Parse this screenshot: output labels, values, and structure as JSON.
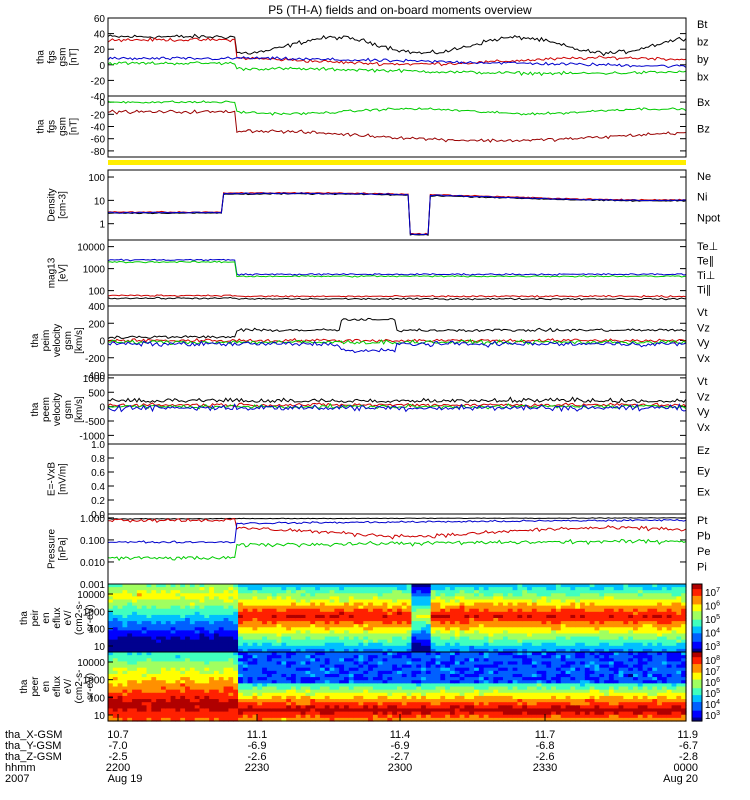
{
  "title": "P5 (TH-A) fields and on-board moments overview",
  "colors": {
    "black": "#000000",
    "red": "#cc0000",
    "green": "#00cc00",
    "blue": "#0000cc",
    "darkred": "#990000",
    "separator": "#ffee00"
  },
  "chart_data": [
    {
      "type": "line",
      "panel": "fgs-gsm",
      "ylabel": [
        "tha",
        "fgs",
        "gsm",
        "[nT]"
      ],
      "ylim": [
        -40,
        60
      ],
      "yticks": [
        "60",
        "40",
        "20",
        "0",
        "-20",
        "-40"
      ],
      "series": [
        {
          "name": "Bt",
          "color": "#000000"
        },
        {
          "name": "bz",
          "color": "#cc0000"
        },
        {
          "name": "by",
          "color": "#00cc00"
        },
        {
          "name": "bx",
          "color": "#0000cc"
        }
      ]
    },
    {
      "type": "line",
      "panel": "fgs-gsm-Bz",
      "ylabel": [
        "tha",
        "fgs",
        "gsm",
        "[nT]"
      ],
      "ylim": [
        -90,
        10
      ],
      "yticks": [
        "0",
        "-20",
        "-40",
        "-60",
        "-80"
      ],
      "series": [
        {
          "name": "Bx",
          "color": "#00cc00"
        },
        {
          "name": "Bz",
          "color": "#990000"
        }
      ]
    },
    {
      "type": "line",
      "panel": "density",
      "ylabel": [
        "Density",
        "[cm-3]"
      ],
      "ylim": [
        0.2,
        200
      ],
      "log": true,
      "yticks": [
        "100",
        "10",
        "1"
      ],
      "series": [
        {
          "name": "Ne",
          "color": "#cc0000"
        },
        {
          "name": "Ni",
          "color": "#000000"
        },
        {
          "name": "Npot",
          "color": "#0000cc"
        }
      ]
    },
    {
      "type": "line",
      "panel": "temperature",
      "ylabel": [
        "mag13",
        "[eV]"
      ],
      "ylim": [
        20,
        20000
      ],
      "log": true,
      "yticks": [
        "10000",
        "1000",
        "100"
      ],
      "series": [
        {
          "name": "Te⊥",
          "color": "#cc0000"
        },
        {
          "name": "Te∥",
          "color": "#000000"
        },
        {
          "name": "Ti⊥",
          "color": "#0000cc"
        },
        {
          "name": "Ti∥",
          "color": "#00cc00"
        }
      ]
    },
    {
      "type": "line",
      "panel": "peim-velocity",
      "ylabel": [
        "tha",
        "peim",
        "velocity",
        "gsm",
        "[km/s]"
      ],
      "ylim": [
        -400,
        400
      ],
      "yticks": [
        "400",
        "200",
        "0",
        "-200",
        "-400"
      ],
      "series": [
        {
          "name": "Vt",
          "color": "#000000"
        },
        {
          "name": "Vz",
          "color": "#cc0000"
        },
        {
          "name": "Vy",
          "color": "#00cc00"
        },
        {
          "name": "Vx",
          "color": "#0000cc"
        }
      ]
    },
    {
      "type": "line",
      "panel": "peem-velocity",
      "ylabel": [
        "tha",
        "peem",
        "velocity",
        "gsm",
        "[km/s]"
      ],
      "ylim": [
        -1300,
        1100
      ],
      "yticks": [
        "1000",
        "500",
        "0",
        "-500",
        "-1000"
      ],
      "series": [
        {
          "name": "Vt",
          "color": "#000000"
        },
        {
          "name": "Vz",
          "color": "#cc0000"
        },
        {
          "name": "Vy",
          "color": "#00cc00"
        },
        {
          "name": "Vx",
          "color": "#0000cc"
        }
      ]
    },
    {
      "type": "line",
      "panel": "efield",
      "ylabel": [
        "E=-VxB",
        "[mV/m]"
      ],
      "ylim": [
        0.0,
        1.0
      ],
      "yticks": [
        "1.0",
        "0.8",
        "0.6",
        "0.4",
        "0.2",
        "0.0"
      ],
      "series": [
        {
          "name": "Ez",
          "color": "#cc0000"
        },
        {
          "name": "Ey",
          "color": "#00cc00"
        },
        {
          "name": "Ex",
          "color": "#0000cc"
        }
      ]
    },
    {
      "type": "line",
      "panel": "pressure",
      "ylabel": [
        "Pressure",
        "[nPa]"
      ],
      "ylim": [
        0.001,
        1.5
      ],
      "log": true,
      "yticks": [
        "1.000",
        "0.100",
        "0.010",
        "0.001"
      ],
      "series": [
        {
          "name": "Pt",
          "color": "#000000"
        },
        {
          "name": "Pb",
          "color": "#cc0000"
        },
        {
          "name": "Pe",
          "color": "#00cc00"
        },
        {
          "name": "Pi",
          "color": "#0000cc"
        }
      ]
    },
    {
      "type": "heatmap",
      "panel": "peir-en-eflux",
      "ylabel": [
        "tha",
        "peir",
        "en",
        "eflux",
        "eV/",
        "(cm2-s-",
        "sr-eV)"
      ],
      "yticks": [
        "10000",
        "1000",
        "100",
        "10"
      ],
      "colorbar": {
        "ticks": [
          "10",
          "10",
          "10",
          "10",
          "10"
        ],
        "exps": [
          "7",
          "6",
          "5",
          "4",
          "3"
        ]
      }
    },
    {
      "type": "heatmap",
      "panel": "peer-en-eflux",
      "ylabel": [
        "tha",
        "peer",
        "en",
        "eflux",
        "eV/",
        "(cm2-s-",
        "sr-eV)"
      ],
      "yticks": [
        "10000",
        "1000",
        "100",
        "10"
      ],
      "colorbar": {
        "ticks": [
          "10",
          "10",
          "10",
          "10",
          "10",
          "10"
        ],
        "exps": [
          "8",
          "7",
          "6",
          "5",
          "4",
          "3"
        ]
      }
    }
  ],
  "xaxis": {
    "row_labels": [
      "tha_X-GSM",
      "tha_Y-GSM",
      "tha_Z-GSM",
      "hhmm",
      "2007"
    ],
    "ticks": [
      {
        "x": "10.7",
        "y": "-7.0",
        "z": "-2.5",
        "hhmm": "2200",
        "date": "Aug 19"
      },
      {
        "x": "11.1",
        "y": "-6.9",
        "z": "-2.6",
        "hhmm": "2230",
        "date": ""
      },
      {
        "x": "11.4",
        "y": "-6.9",
        "z": "-2.7",
        "hhmm": "2300",
        "date": ""
      },
      {
        "x": "11.7",
        "y": "-6.8",
        "z": "-2.6",
        "hhmm": "2330",
        "date": ""
      },
      {
        "x": "11.9",
        "y": "-6.7",
        "z": "-2.8",
        "hhmm": "0000",
        "date": "Aug 20"
      }
    ]
  }
}
